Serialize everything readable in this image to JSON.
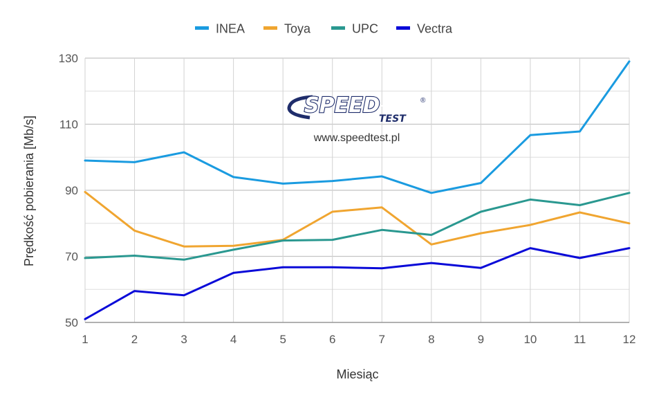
{
  "chart_data": {
    "type": "line",
    "x": [
      1,
      2,
      3,
      4,
      5,
      6,
      7,
      8,
      9,
      10,
      11,
      12
    ],
    "series": [
      {
        "name": "INEA",
        "color": "#1a9be0",
        "values": [
          99.0,
          98.5,
          101.5,
          94.0,
          92.0,
          92.8,
          94.2,
          89.2,
          92.2,
          106.7,
          107.8,
          129.0
        ]
      },
      {
        "name": "Toya",
        "color": "#f0a530",
        "values": [
          89.5,
          77.8,
          73.0,
          73.2,
          75.0,
          83.5,
          84.8,
          73.6,
          77.0,
          79.5,
          83.3,
          80.0
        ]
      },
      {
        "name": "UPC",
        "color": "#2a9890",
        "values": [
          69.5,
          70.2,
          69.0,
          72.0,
          74.8,
          75.0,
          78.0,
          76.5,
          83.5,
          87.2,
          85.5,
          89.2
        ]
      },
      {
        "name": "Vectra",
        "color": "#0a0ad8",
        "values": [
          51.0,
          59.5,
          58.2,
          65.0,
          66.7,
          66.7,
          66.4,
          68.0,
          66.5,
          72.5,
          69.5,
          72.5
        ]
      }
    ],
    "xlabel": "Miesiąc",
    "ylabel": "Prędkość pobierania [Mb/s]",
    "ylim": [
      50,
      130
    ],
    "yticks": [
      50,
      70,
      90,
      110,
      130
    ],
    "xlim": [
      1,
      12
    ],
    "grid": true,
    "legend": "top"
  },
  "watermark": {
    "logo_word": "SPEED",
    "logo_sub": "TEST",
    "logo_mark": "®",
    "url": "www.speedtest.pl",
    "color": "#1f2d6b"
  }
}
